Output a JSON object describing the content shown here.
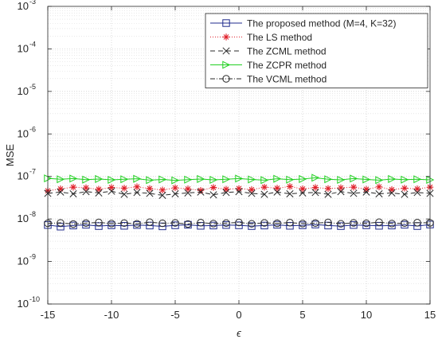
{
  "chart_data": {
    "type": "line",
    "xlabel": "ϵ",
    "ylabel": "MSE",
    "xlim": [
      -15,
      15
    ],
    "ylim": [
      1e-10,
      0.001
    ],
    "yscale": "log",
    "grid": true,
    "legend_position": "top-right",
    "x_ticks": [
      "-15",
      "-10",
      "-5",
      "0",
      "5",
      "10",
      "15"
    ],
    "y_ticks": [
      {
        "base": "10",
        "exp": "-10"
      },
      {
        "base": "10",
        "exp": "-9"
      },
      {
        "base": "10",
        "exp": "-8"
      },
      {
        "base": "10",
        "exp": "-7"
      },
      {
        "base": "10",
        "exp": "-6"
      },
      {
        "base": "10",
        "exp": "-5"
      },
      {
        "base": "10",
        "exp": "-4"
      },
      {
        "base": "10",
        "exp": "-3"
      }
    ],
    "x": [
      -15,
      -14,
      -13,
      -12,
      -11,
      -10,
      -9,
      -8,
      -7,
      -6,
      -5,
      -4,
      -3,
      -2,
      -1,
      0,
      1,
      2,
      3,
      4,
      5,
      6,
      7,
      8,
      9,
      10,
      11,
      12,
      13,
      14,
      15
    ],
    "series": [
      {
        "name": "The proposed method (M=4, K=32)",
        "color": "#1f2a8c",
        "dash": "",
        "marker": "square",
        "values": [
          7.2e-09,
          6.6e-09,
          7e-09,
          7.3e-09,
          6.8e-09,
          7.1e-09,
          6.9e-09,
          7.2e-09,
          7e-09,
          6.7e-09,
          7.1e-09,
          7.3e-09,
          6.9e-09,
          7e-09,
          7.2e-09,
          7.1e-09,
          6.8e-09,
          7e-09,
          7.3e-09,
          6.9e-09,
          7.1e-09,
          7.4e-09,
          7e-09,
          6.8e-09,
          7.2e-09,
          7.1e-09,
          6.9e-09,
          7e-09,
          7.3e-09,
          6.8e-09,
          7.4e-09
        ]
      },
      {
        "name": "The LS method",
        "color": "#e0202a",
        "dash": "1,2",
        "marker": "asterisk",
        "values": [
          4.6e-08,
          5.1e-08,
          5.6e-08,
          5.4e-08,
          5e-08,
          5.5e-08,
          5.3e-08,
          5.7e-08,
          5.2e-08,
          4.8e-08,
          5.4e-08,
          5.1e-08,
          4.7e-08,
          5.5e-08,
          5e-08,
          5.2e-08,
          4.9e-08,
          5.6e-08,
          5.3e-08,
          5.8e-08,
          5.1e-08,
          5.5e-08,
          5.2e-08,
          5.4e-08,
          5.6e-08,
          5e-08,
          5.7e-08,
          4.9e-08,
          5.3e-08,
          5.1e-08,
          5.6e-08
        ]
      },
      {
        "name": "The ZCML method",
        "color": "#2a2a2a",
        "dash": "6,4",
        "marker": "x",
        "values": [
          4e-08,
          4.3e-08,
          3.9e-08,
          4.4e-08,
          4.1e-08,
          4.5e-08,
          3.8e-08,
          4.2e-08,
          4e-08,
          3.6e-08,
          3.9e-08,
          4.1e-08,
          4.3e-08,
          3.7e-08,
          4.2e-08,
          4.4e-08,
          4e-08,
          3.8e-08,
          4.3e-08,
          3.9e-08,
          4.1e-08,
          4.2e-08,
          3.8e-08,
          4.4e-08,
          4e-08,
          4.3e-08,
          3.9e-08,
          4.1e-08,
          3.8e-08,
          4.2e-08,
          4e-08
        ]
      },
      {
        "name": "The ZCPR method",
        "color": "#22d022",
        "dash": "",
        "marker": "triangle-right",
        "values": [
          9e-08,
          8.6e-08,
          8.9e-08,
          8.4e-08,
          8.7e-08,
          8.3e-08,
          8.6e-08,
          8.8e-08,
          8.2e-08,
          8.5e-08,
          8.1e-08,
          8.4e-08,
          8.7e-08,
          8.3e-08,
          8.6e-08,
          8.9e-08,
          8.5e-08,
          8.2e-08,
          8.8e-08,
          8.4e-08,
          8.7e-08,
          9.3e-08,
          8.6e-08,
          8.3e-08,
          8.9e-08,
          8.5e-08,
          8.2e-08,
          8.7e-08,
          8.4e-08,
          8.6e-08,
          8.3e-08
        ]
      },
      {
        "name": "The VCML method",
        "color": "#2a2a2a",
        "dash": "6,2,1,2",
        "marker": "circle",
        "values": [
          7.9e-09,
          8.1e-09,
          7.6e-09,
          8e-09,
          8.3e-09,
          7.8e-09,
          8e-09,
          7.7e-09,
          8.4e-09,
          7.9e-09,
          8.1e-09,
          7.6e-09,
          8.2e-09,
          7.8e-09,
          8e-09,
          8.3e-09,
          7.7e-09,
          8.1e-09,
          7.9e-09,
          8.2e-09,
          7.8e-09,
          8e-09,
          8.3e-09,
          7.7e-09,
          8.1e-09,
          7.9e-09,
          8.4e-09,
          7.8e-09,
          8e-09,
          8.2e-09,
          8.1e-09
        ]
      }
    ]
  }
}
